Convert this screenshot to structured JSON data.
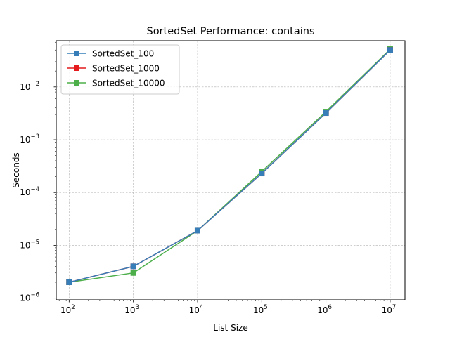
{
  "chart_data": {
    "type": "line",
    "title": "SortedSet Performance: contains",
    "xlabel": "List Size",
    "ylabel": "Seconds",
    "xscale": "log",
    "yscale": "log",
    "xlim": [
      63,
      17000000
    ],
    "ylim": [
      9.3e-07,
      0.075
    ],
    "grid": true,
    "legend_position": "top-left",
    "x": [
      100,
      1000,
      10000,
      100000,
      1000000,
      10000000
    ],
    "x_tick_labels": [
      {
        "base": "10",
        "exp": "2",
        "value": 100
      },
      {
        "base": "10",
        "exp": "3",
        "value": 1000
      },
      {
        "base": "10",
        "exp": "4",
        "value": 10000
      },
      {
        "base": "10",
        "exp": "5",
        "value": 100000
      },
      {
        "base": "10",
        "exp": "6",
        "value": 1000000
      },
      {
        "base": "10",
        "exp": "7",
        "value": 10000000
      }
    ],
    "y_tick_labels": [
      {
        "base": "10",
        "exp": "−6",
        "value": 1e-06
      },
      {
        "base": "10",
        "exp": "−5",
        "value": 1e-05
      },
      {
        "base": "10",
        "exp": "−4",
        "value": 0.0001
      },
      {
        "base": "10",
        "exp": "−3",
        "value": 0.001
      },
      {
        "base": "10",
        "exp": "−2",
        "value": 0.01
      }
    ],
    "series": [
      {
        "name": "SortedSet_10000",
        "color": "#4daf4a",
        "marker": "square",
        "values": [
          2e-06,
          3e-06,
          1.9e-05,
          0.00025,
          0.0034,
          0.052
        ]
      },
      {
        "name": "SortedSet_1000",
        "color": "#e41a1c",
        "marker": "square",
        "values": [
          2e-06,
          4e-06,
          1.9e-05,
          0.00023,
          0.0032,
          0.05
        ]
      },
      {
        "name": "SortedSet_100",
        "color": "#377eb8",
        "marker": "square",
        "values": [
          2e-06,
          4e-06,
          1.9e-05,
          0.00023,
          0.0032,
          0.05
        ]
      }
    ],
    "legend_order": [
      "SortedSet_100",
      "SortedSet_1000",
      "SortedSet_10000"
    ]
  }
}
